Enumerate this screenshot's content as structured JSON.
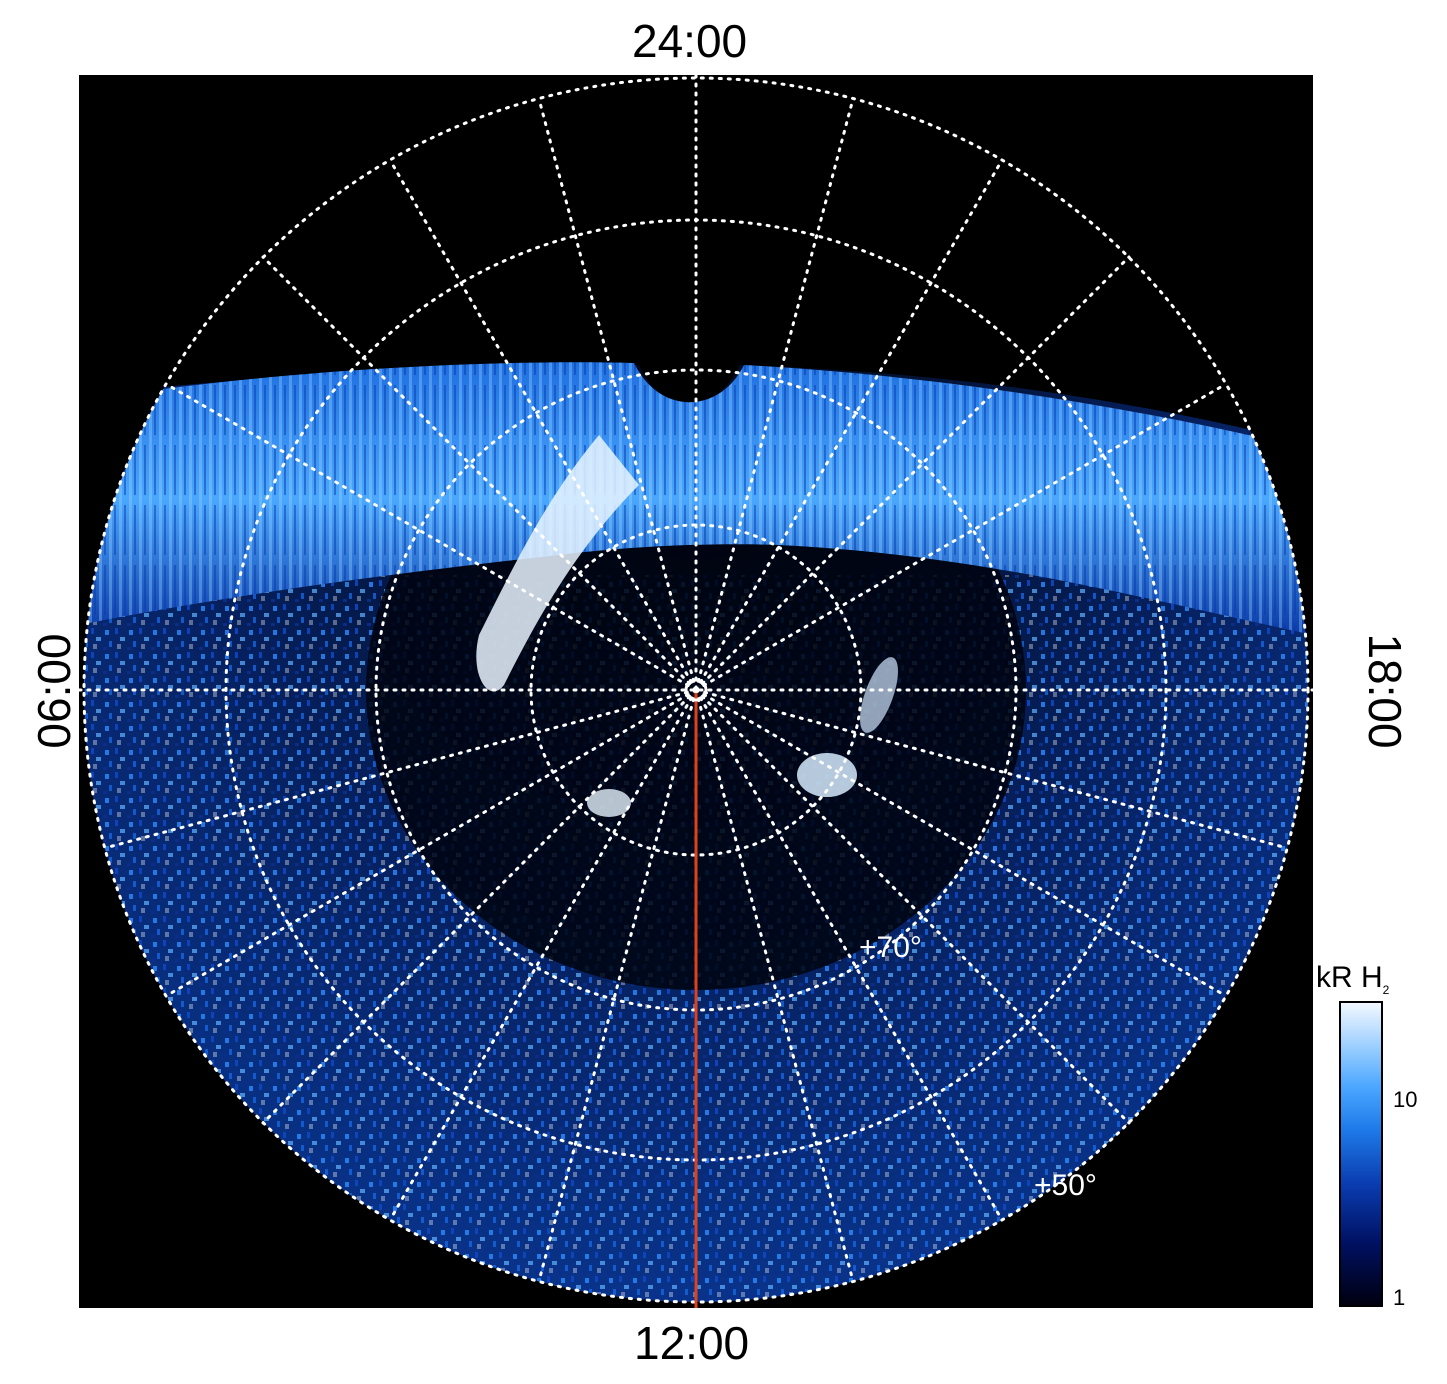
{
  "local_time_labels": {
    "top": "24:00",
    "bottom": "12:00",
    "left": "06:00",
    "right": "18:00"
  },
  "latitude_labels": {
    "inner": "+70°",
    "outer": "+50°"
  },
  "colorbar": {
    "title": "kR H",
    "title_subscript": "2",
    "ticks": [
      "10",
      "1"
    ],
    "scale": "log"
  },
  "colors": {
    "background": "#000000",
    "grid": "#ffffff",
    "meridian_marker": "#e0401a",
    "aurora_bright": "#cfe8ff",
    "aurora_mid": "#3d9bff",
    "aurora_dark": "#0a2a8a"
  }
}
